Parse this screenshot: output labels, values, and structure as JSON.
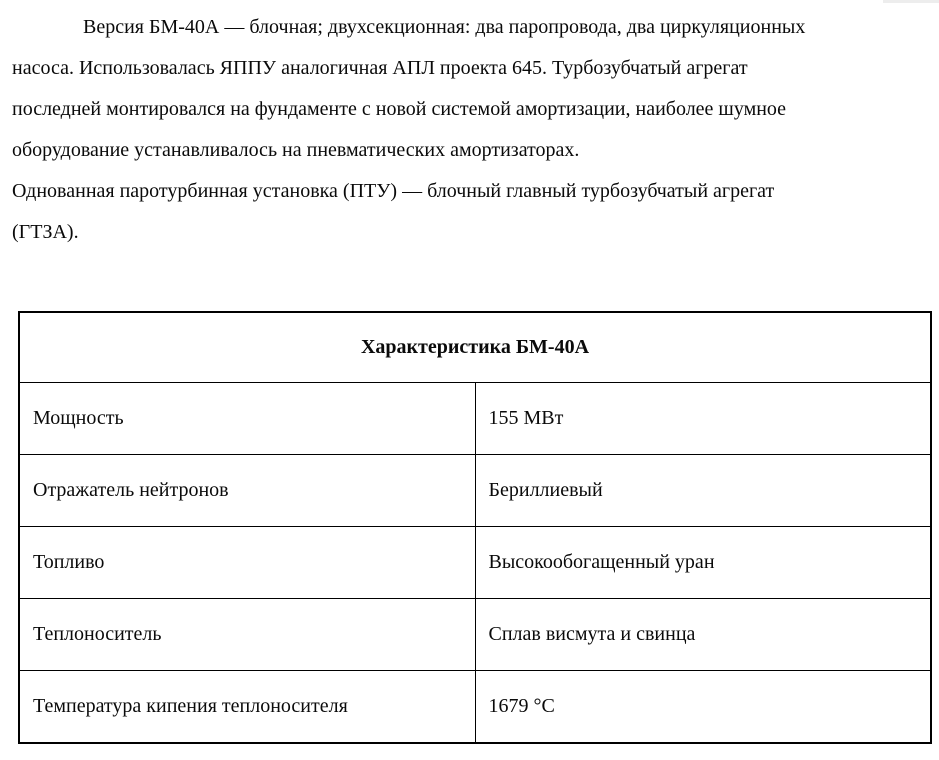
{
  "article": {
    "paragraphs": [
      {
        "lines": [
          "Версия БМ-40А — блочная; двухсекционная: два паропровода, два циркуляционных",
          "насоса. Использовалась ЯППУ аналогичная АПЛ проекта 645. Турбозубчатый агрегат",
          "последней монтировался на фундаменте с новой системой амортизации, наиболее шумное",
          "оборудование устанавливалось на пневматических амортизаторах."
        ]
      },
      {
        "lines": [
          "Однованная паротурбинная установка (ПТУ) — блочный главный турбозубчатый агрегат",
          "(ГТЗА)."
        ]
      }
    ]
  },
  "table": {
    "title": "Характеристика БМ-40А",
    "rows": [
      {
        "label": "Мощность",
        "value": "155 МВт"
      },
      {
        "label": "Отражатель нейтронов",
        "value": "Бериллиевый"
      },
      {
        "label": "Топливо",
        "value": "Высокообогащенный уран"
      },
      {
        "label": "Теплоноситель",
        "value": "Сплав висмута и свинца"
      },
      {
        "label": "Температура кипения теплоносителя",
        "value": "1679 °С"
      }
    ]
  },
  "colors": {
    "text": "#0a0a0a",
    "border": "#000000",
    "background": "#ffffff"
  }
}
